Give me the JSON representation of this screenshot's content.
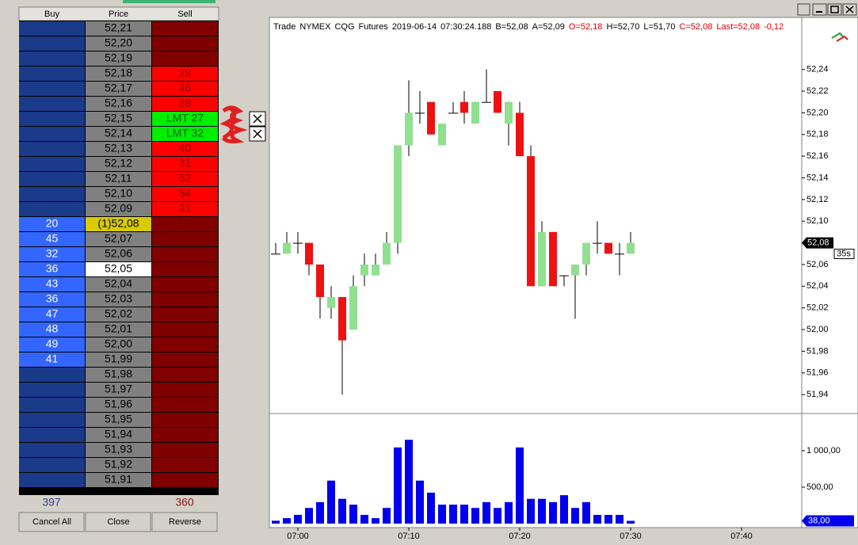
{
  "dom": {
    "headers": [
      "Buy",
      "Price",
      "Sell"
    ],
    "rows": [
      {
        "price": "52,21"
      },
      {
        "price": "52,20"
      },
      {
        "price": "52,19"
      },
      {
        "price": "52,18",
        "sell": 29
      },
      {
        "price": "52,17",
        "sell": 46
      },
      {
        "price": "52,16",
        "sell": 28
      },
      {
        "price": "52,15",
        "sell": "LMT 27"
      },
      {
        "price": "52,14",
        "sell": "LMT 32"
      },
      {
        "price": "52,13",
        "sell": 40
      },
      {
        "price": "52,12",
        "sell": 31
      },
      {
        "price": "52,11",
        "sell": 52
      },
      {
        "price": "52,10",
        "sell": 54
      },
      {
        "price": "52,09",
        "sell": 21
      },
      {
        "price": "(1)52,08",
        "buy": 20,
        "price_color": "#d8cc00"
      },
      {
        "price": "52,07",
        "buy": 45
      },
      {
        "price": "52,06",
        "buy": 32
      },
      {
        "price": "52,05",
        "buy": 36,
        "price_color": "#ffffff"
      },
      {
        "price": "52,04",
        "buy": 43
      },
      {
        "price": "52,03",
        "buy": 36
      },
      {
        "price": "52,02",
        "buy": 47
      },
      {
        "price": "52,01",
        "buy": 48
      },
      {
        "price": "52,00",
        "buy": 49
      },
      {
        "price": "51,99",
        "buy": 41
      },
      {
        "price": "51,98"
      },
      {
        "price": "51,97"
      },
      {
        "price": "51,96"
      },
      {
        "price": "51,95"
      },
      {
        "price": "51,94"
      },
      {
        "price": "51,93"
      },
      {
        "price": "51,92"
      },
      {
        "price": "51,91"
      }
    ],
    "totals": {
      "buy": 397,
      "sell": 360
    },
    "buttons": [
      "Cancel All",
      "Close",
      "Reverse"
    ]
  },
  "chart_data": {
    "type": "candlestick",
    "header": [
      {
        "text": "Trade",
        "color": "#000000"
      },
      {
        "text": "NYMEX",
        "color": "#000000"
      },
      {
        "text": "CQG",
        "color": "#000000"
      },
      {
        "text": "Futures",
        "color": "#000000"
      },
      {
        "text": "2019-06-14",
        "color": "#000000"
      },
      {
        "text": "07:30:24.188",
        "color": "#000000"
      },
      {
        "text": "B=52,08",
        "color": "#000000"
      },
      {
        "text": "A=52,09",
        "color": "#000000"
      },
      {
        "text": "O=52,18",
        "color": "#e00000"
      },
      {
        "text": "H=52,70",
        "color": "#000000"
      },
      {
        "text": "L=51,70",
        "color": "#000000"
      },
      {
        "text": "C=52,08",
        "color": "#e00000"
      },
      {
        "text": "Last=52,08",
        "color": "#e00000"
      },
      {
        "text": "-0,12",
        "color": "#e00000"
      }
    ],
    "categories": [
      null,
      null,
      "07:00",
      null,
      null,
      null,
      null,
      null,
      null,
      null,
      null,
      null,
      "07:10",
      null,
      null,
      null,
      null,
      null,
      null,
      null,
      null,
      null,
      "07:20",
      null,
      null,
      null,
      null,
      null,
      null,
      null,
      null,
      null,
      "07:30",
      null,
      null,
      null,
      null,
      null,
      null,
      null,
      null,
      null,
      "07:40"
    ],
    "open": [
      52.07,
      52.07,
      52.08,
      52.08,
      52.06,
      52.02,
      52.03,
      52.0,
      52.05,
      52.05,
      52.06,
      52.08,
      52.17,
      52.2,
      52.21,
      52.17,
      52.2,
      52.21,
      52.19,
      52.21,
      52.22,
      52.19,
      52.2,
      52.16,
      52.04,
      52.09,
      52.05,
      52.05,
      52.06,
      52.08,
      52.08,
      52.07,
      52.07,
      null,
      null,
      null,
      null,
      null,
      null,
      null,
      null,
      null,
      null
    ],
    "high": [
      52.08,
      52.09,
      52.09,
      52.08,
      52.06,
      52.04,
      52.03,
      52.05,
      52.07,
      52.07,
      52.09,
      52.17,
      52.23,
      52.22,
      52.21,
      52.19,
      52.21,
      52.22,
      52.21,
      52.24,
      52.22,
      52.21,
      52.21,
      52.17,
      52.1,
      52.09,
      52.05,
      52.06,
      52.08,
      52.1,
      52.08,
      52.08,
      52.09,
      null,
      null,
      null,
      null,
      null,
      null,
      null,
      null,
      null,
      null
    ],
    "low": [
      52.07,
      52.07,
      52.07,
      52.05,
      52.01,
      52.01,
      51.94,
      52.0,
      52.04,
      52.05,
      52.06,
      52.07,
      52.16,
      52.19,
      52.18,
      52.17,
      52.2,
      52.19,
      52.19,
      52.21,
      52.2,
      52.17,
      52.16,
      52.04,
      52.04,
      52.04,
      52.04,
      52.01,
      52.05,
      52.07,
      52.07,
      52.05,
      52.07,
      null,
      null,
      null,
      null,
      null,
      null,
      null,
      null,
      null,
      null
    ],
    "close": [
      52.07,
      52.08,
      52.08,
      52.06,
      52.03,
      52.03,
      51.99,
      52.04,
      52.06,
      52.06,
      52.08,
      52.17,
      52.2,
      52.2,
      52.18,
      52.19,
      52.2,
      52.2,
      52.21,
      52.21,
      52.2,
      52.21,
      52.16,
      52.04,
      52.09,
      52.04,
      52.05,
      52.06,
      52.08,
      52.08,
      52.07,
      52.07,
      52.08,
      null,
      null,
      null,
      null,
      null,
      null,
      null,
      null,
      null,
      null
    ],
    "up_color": "#90e090",
    "down_color": "#ee1111",
    "ylim": [
      51.924,
      52.288
    ],
    "yticks": [
      {
        "value": 51.94,
        "label": "51,94"
      },
      {
        "value": 51.96,
        "label": "51,96"
      },
      {
        "value": 51.98,
        "label": "51,98"
      },
      {
        "value": 52.0,
        "label": "52,00"
      },
      {
        "value": 52.02,
        "label": "52,02"
      },
      {
        "value": 52.04,
        "label": "52,04"
      },
      {
        "value": 52.06,
        "label": "52,06"
      },
      {
        "value": 52.08,
        "label": "52,08"
      },
      {
        "value": 52.1,
        "label": "52,10"
      },
      {
        "value": 52.12,
        "label": "52,12"
      },
      {
        "value": 52.14,
        "label": "52,14"
      },
      {
        "value": 52.16,
        "label": "52,16"
      },
      {
        "value": 52.18,
        "label": "52,18"
      },
      {
        "value": 52.2,
        "label": "52,20"
      },
      {
        "value": 52.22,
        "label": "52,22"
      },
      {
        "value": 52.24,
        "label": "52,24"
      }
    ],
    "last_price": {
      "value": 52.08,
      "label": "52,08"
    },
    "countdown": "35s",
    "volume": {
      "values": [
        40,
        75,
        120,
        215,
        295,
        590,
        340,
        260,
        120,
        75,
        215,
        1045,
        1150,
        590,
        425,
        260,
        260,
        260,
        215,
        295,
        215,
        295,
        1045,
        340,
        340,
        295,
        390,
        215,
        295,
        120,
        120,
        120,
        38,
        null,
        null,
        null,
        null,
        null,
        null,
        null,
        null,
        null,
        null
      ],
      "color": "#0000ee",
      "ylim": [
        0,
        1478
      ],
      "yticks": [
        {
          "value": 500,
          "label": "500,00"
        },
        {
          "value": 1000,
          "label": "1 000,00"
        }
      ],
      "last_value": {
        "value": 38,
        "label": "38,00"
      }
    }
  }
}
